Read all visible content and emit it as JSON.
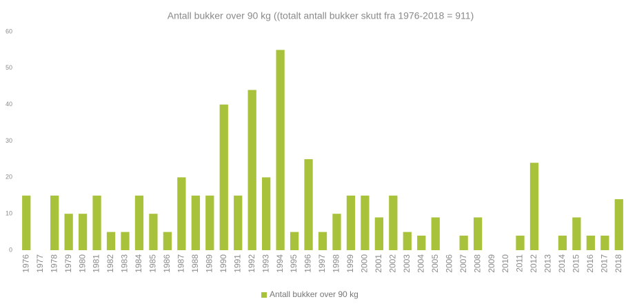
{
  "chart_data": {
    "type": "bar",
    "title": "Antall bukker over 90 kg ((totalt antall bukker skutt fra 1976-2018 = 911)",
    "categories": [
      "1976",
      "1977",
      "1978",
      "1979",
      "1980",
      "1981",
      "1982",
      "1983",
      "1984",
      "1985",
      "1986",
      "1987",
      "1988",
      "1989",
      "1990",
      "1991",
      "1992",
      "1993",
      "1994",
      "1995",
      "1996",
      "1997",
      "1998",
      "1999",
      "2000",
      "2001",
      "2002",
      "2003",
      "2004",
      "2005",
      "2006",
      "2007",
      "2008",
      "2009",
      "2010",
      "2011",
      "2012",
      "2013",
      "2014",
      "2015",
      "2016",
      "2017",
      "2018"
    ],
    "series": [
      {
        "name": "Antall bukker over 90 kg",
        "color": "#a8c23c",
        "values": [
          15,
          0,
          15,
          10,
          10,
          15,
          5,
          5,
          15,
          10,
          5,
          20,
          15,
          15,
          40,
          15,
          44,
          20,
          55,
          5,
          25,
          5,
          10,
          15,
          15,
          9,
          15,
          5,
          4,
          9,
          0,
          4,
          9,
          0,
          0,
          4,
          24,
          0,
          4,
          9,
          4,
          4,
          14
        ]
      }
    ],
    "ylim": [
      0,
      60
    ],
    "yticks": [
      0,
      10,
      20,
      30,
      40,
      50,
      60
    ],
    "grid": false,
    "legend": "bottom"
  }
}
